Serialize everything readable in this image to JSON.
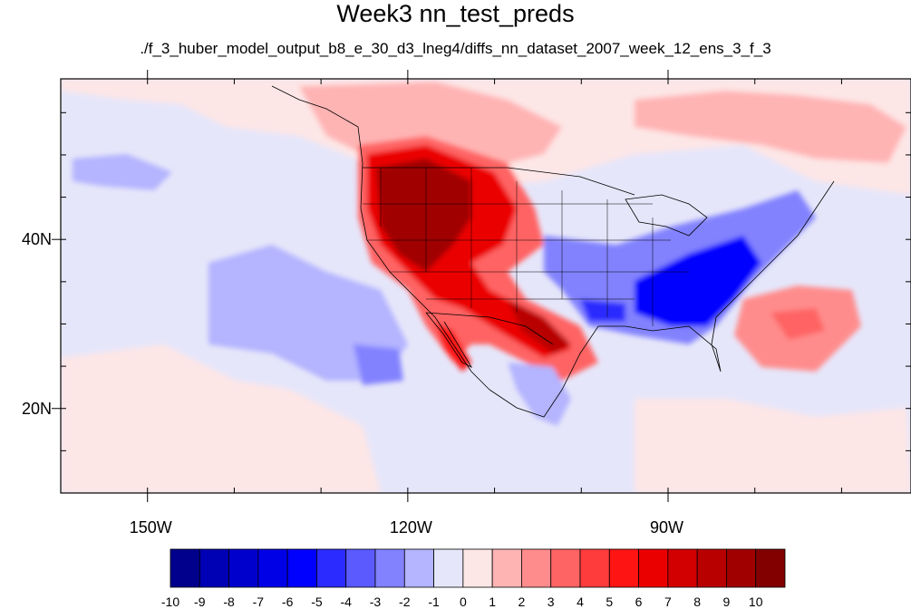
{
  "title": "Week3 nn_test_preds",
  "subtitle": "./f_3_huber_model_output_b8_e_30_d3_lneg4/diffs_nn_dataset_2007_week_12_ens_3_f_3",
  "map": {
    "lon_range": [
      -160,
      -62
    ],
    "lat_range": [
      10,
      59
    ],
    "lon_ticks": [
      {
        "lon": -150,
        "label": "150W"
      },
      {
        "lon": -120,
        "label": "120W"
      },
      {
        "lon": -90,
        "label": "90W"
      }
    ],
    "lat_ticks": [
      {
        "lat": 40,
        "label": "40N"
      },
      {
        "lat": 20,
        "label": "20N"
      }
    ],
    "features": [
      {
        "type": "high",
        "region": "western US (Great Basin / Pacific Northwest)",
        "value": 10
      },
      {
        "type": "high",
        "region": "southwestern US into Texas",
        "value": 7
      },
      {
        "type": "high",
        "region": "Atlantic off southeastern US",
        "value": 4
      },
      {
        "type": "low",
        "region": "southeastern US",
        "value": -6
      },
      {
        "type": "low",
        "region": "eastern Pacific",
        "value": -2
      },
      {
        "type": "low",
        "region": "Mexico",
        "value": -4
      }
    ]
  },
  "colorbar": {
    "levels": [
      "-10",
      "-9",
      "-8",
      "-7",
      "-6",
      "-5",
      "-4",
      "-3",
      "-2",
      "-1",
      "0",
      "1",
      "2",
      "3",
      "4",
      "5",
      "6",
      "7",
      "8",
      "9",
      "10"
    ],
    "colors": [
      "#00008c",
      "#0000b4",
      "#0000cd",
      "#0000e6",
      "#0000ff",
      "#2b2bff",
      "#5a5aff",
      "#8282ff",
      "#b4b4ff",
      "#e6e6fa",
      "#fde6e6",
      "#ffb4b4",
      "#ff8c8c",
      "#ff6464",
      "#ff3c3c",
      "#ff1414",
      "#eb0000",
      "#d20000",
      "#b90000",
      "#a00000",
      "#820000"
    ]
  }
}
